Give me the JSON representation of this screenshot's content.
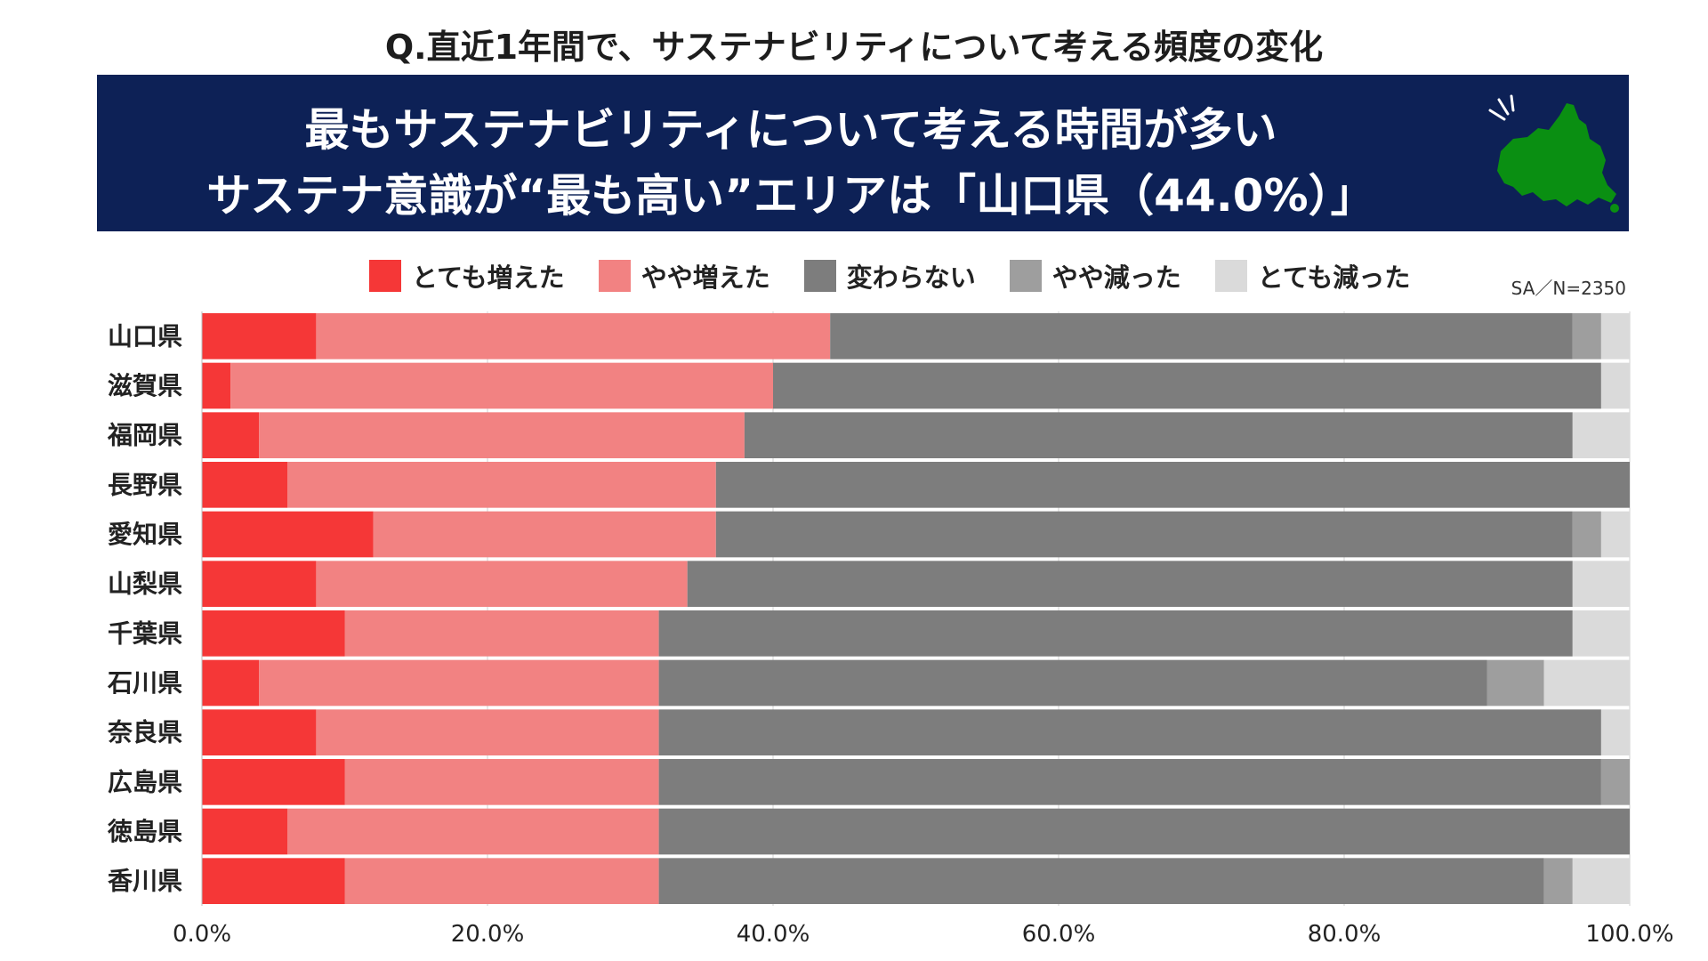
{
  "question": "Q.直近1年間で、サステナビリティについて考える頻度の変化",
  "banner": {
    "line1": "最もサステナビリティについて考える時間が多い",
    "line2": "サステナ意識が“最も高い”エリアは「山口県（44.0%）」"
  },
  "colors": {
    "banner_bg": "#0d2156",
    "map_fill": "#0a8f12"
  },
  "sample_note": "SA／N=2350",
  "chart_data": {
    "type": "bar",
    "orientation": "horizontal",
    "stacked": true,
    "categories": [
      "山口県",
      "滋賀県",
      "福岡県",
      "長野県",
      "愛知県",
      "山梨県",
      "千葉県",
      "石川県",
      "奈良県",
      "広島県",
      "徳島県",
      "香川県"
    ],
    "series": [
      {
        "name": "とても増えた",
        "color": "#f53737",
        "values": [
          8,
          2,
          4,
          6,
          12,
          8,
          10,
          4,
          8,
          10,
          6,
          10
        ]
      },
      {
        "name": "やや増えた",
        "color": "#f28282",
        "values": [
          36,
          38,
          34,
          30,
          24,
          26,
          22,
          28,
          24,
          22,
          26,
          22
        ]
      },
      {
        "name": "変わらない",
        "color": "#7d7d7d",
        "values": [
          52,
          58,
          58,
          64,
          60,
          62,
          64,
          58,
          66,
          66,
          68,
          62
        ]
      },
      {
        "name": "やや減った",
        "color": "#9e9e9e",
        "values": [
          2,
          0,
          0,
          0,
          2,
          0,
          0,
          4,
          0,
          2,
          0,
          2
        ]
      },
      {
        "name": "とても減った",
        "color": "#dadada",
        "values": [
          2,
          2,
          4,
          0,
          2,
          4,
          4,
          6,
          2,
          0,
          0,
          4
        ]
      }
    ],
    "xlim": [
      0,
      100
    ],
    "xticks": [
      "0.0%",
      "20.0%",
      "40.0%",
      "60.0%",
      "80.0%",
      "100.0%"
    ],
    "grid": true,
    "legend_position": "top"
  }
}
